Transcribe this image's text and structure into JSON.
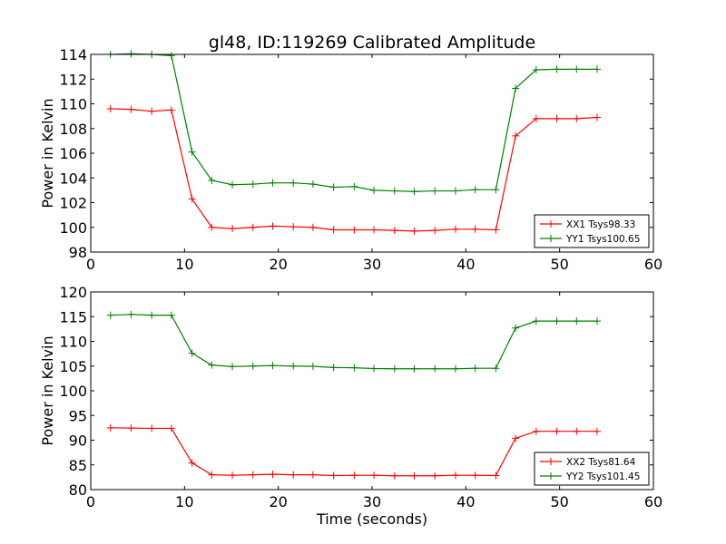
{
  "title": "gl48, ID:119269 Calibrated Amplitude",
  "chart_data": [
    {
      "type": "line",
      "ylabel": "Power in Kelvin",
      "xlabel": "",
      "xlim": [
        0,
        60
      ],
      "ylim": [
        98,
        114
      ],
      "xticks": [
        0,
        10,
        20,
        30,
        40,
        50,
        60
      ],
      "yticks": [
        98,
        100,
        102,
        104,
        106,
        108,
        110,
        112,
        114
      ],
      "grid": false,
      "legend": "lower-right",
      "x": [
        2.1,
        4.3,
        6.5,
        8.6,
        10.8,
        12.9,
        15.1,
        17.3,
        19.4,
        21.6,
        23.7,
        25.9,
        28.1,
        30.2,
        32.4,
        34.5,
        36.7,
        38.9,
        41.0,
        43.2,
        45.3,
        47.5,
        49.7,
        51.8,
        54.0
      ],
      "series": [
        {
          "name": "XX1 Tsys98.33",
          "color": "#ff0000",
          "values": [
            109.6,
            109.55,
            109.4,
            109.5,
            102.3,
            100.0,
            99.9,
            100.0,
            100.1,
            100.05,
            100.0,
            99.8,
            99.8,
            99.8,
            99.75,
            99.7,
            99.75,
            99.85,
            99.85,
            99.8,
            107.4,
            108.8,
            108.8,
            108.8,
            108.9
          ]
        },
        {
          "name": "YY1 Tsys100.65",
          "color": "#008000",
          "values": [
            114.0,
            114.05,
            114.0,
            113.9,
            106.1,
            103.8,
            103.45,
            103.5,
            103.6,
            103.6,
            103.5,
            103.25,
            103.3,
            103.0,
            102.95,
            102.9,
            102.95,
            102.95,
            103.05,
            103.05,
            111.25,
            112.75,
            112.8,
            112.8,
            112.8
          ]
        }
      ]
    },
    {
      "type": "line",
      "ylabel": "Power in Kelvin",
      "xlabel": "Time (seconds)",
      "xlim": [
        0,
        60
      ],
      "ylim": [
        80,
        120
      ],
      "xticks": [
        0,
        10,
        20,
        30,
        40,
        50,
        60
      ],
      "yticks": [
        80,
        85,
        90,
        95,
        100,
        105,
        110,
        115,
        120
      ],
      "grid": false,
      "legend": "lower-right",
      "x": [
        2.1,
        4.3,
        6.5,
        8.6,
        10.8,
        12.9,
        15.1,
        17.3,
        19.4,
        21.6,
        23.7,
        25.9,
        28.1,
        30.2,
        32.4,
        34.5,
        36.7,
        38.9,
        41.0,
        43.2,
        45.3,
        47.5,
        49.7,
        51.8,
        54.0
      ],
      "series": [
        {
          "name": "XX2 Tsys81.64",
          "color": "#ff0000",
          "values": [
            92.5,
            92.45,
            92.4,
            92.4,
            85.4,
            83.0,
            82.9,
            83.0,
            83.1,
            83.0,
            83.0,
            82.85,
            82.9,
            82.9,
            82.8,
            82.8,
            82.8,
            82.9,
            82.9,
            82.85,
            90.4,
            91.8,
            91.8,
            91.8,
            91.8
          ]
        },
        {
          "name": "YY2 Tsys101.45",
          "color": "#008000",
          "values": [
            115.3,
            115.45,
            115.3,
            115.3,
            107.6,
            105.2,
            104.9,
            105.0,
            105.1,
            105.0,
            104.95,
            104.7,
            104.65,
            104.5,
            104.45,
            104.45,
            104.45,
            104.45,
            104.55,
            104.55,
            112.7,
            114.1,
            114.1,
            114.1,
            114.1
          ]
        }
      ]
    }
  ]
}
